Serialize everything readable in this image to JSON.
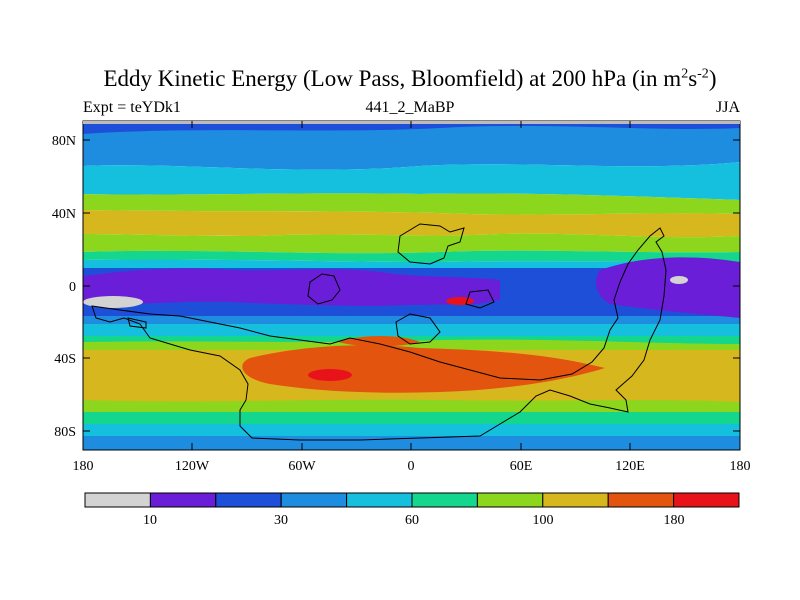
{
  "header": {
    "title": "Eddy Kinetic Energy (Low Pass, Bloomfield) at 200 hPa (in m",
    "title_sup1": "2",
    "title_mid": "s",
    "title_sup2": "-2",
    "title_end": ")",
    "left_label": "Expt = teYDk1",
    "center_label": "441_2_MaBP",
    "right_label": "JJA"
  },
  "map": {
    "lat_ticks": [
      "80N",
      "40N",
      "0",
      "40S",
      "80S"
    ],
    "lon_ticks": [
      "180",
      "120W",
      "60W",
      "0",
      "60E",
      "120E",
      "180"
    ]
  },
  "colorbar": {
    "colors": [
      "#d3d3d3",
      "#6a1ed8",
      "#1e4fd8",
      "#1e8cdf",
      "#15c0df",
      "#14d68c",
      "#8cd61e",
      "#d6b81e",
      "#e3540f",
      "#e8131a"
    ],
    "labels": [
      "10",
      "30",
      "60",
      "100",
      "180"
    ]
  }
}
